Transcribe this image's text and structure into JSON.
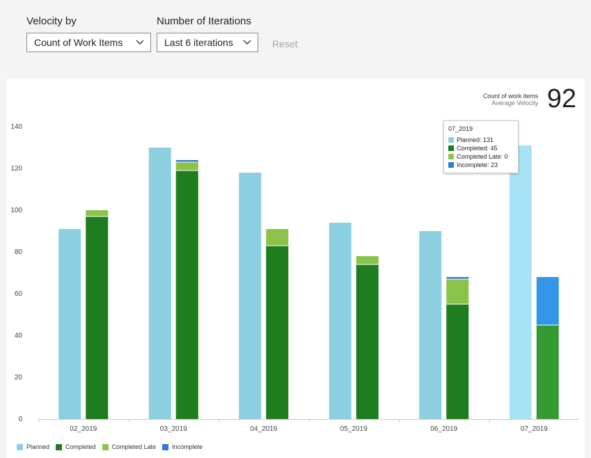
{
  "filters": {
    "velocity_by": {
      "label": "Velocity by",
      "value": "Count of Work Items"
    },
    "iterations": {
      "label": "Number of Iterations",
      "value": "Last 6 iterations"
    },
    "reset_label": "Reset"
  },
  "average": {
    "metric_label": "Count of work items",
    "sub_label": "Average Velocity",
    "value": "92"
  },
  "tooltip": {
    "title": "07_2019",
    "rows": [
      "Planned: 131",
      "Completed: 45",
      "Completed Late: 0",
      "Incomplete: 23"
    ]
  },
  "colors": {
    "planned": "#8ccfe0",
    "completed": "#1e7d1e",
    "completed_late": "#8bc34a",
    "incomplete": "#2e7cd6",
    "planned_highlight": "#a8e3f5",
    "completed_highlight": "#339933",
    "incomplete_highlight": "#3395e8"
  },
  "chart_data": {
    "type": "bar",
    "stacked_completed": true,
    "categories": [
      "02_2019",
      "03_2019",
      "04_2019",
      "05_2019",
      "06_2019",
      "07_2019"
    ],
    "series": [
      {
        "name": "Planned",
        "values": [
          91,
          130,
          118,
          94,
          90,
          131
        ]
      },
      {
        "name": "Completed",
        "values": [
          97,
          119,
          83,
          74,
          55,
          45
        ]
      },
      {
        "name": "Completed Late",
        "values": [
          3,
          4,
          8,
          4,
          12,
          0
        ]
      },
      {
        "name": "Incomplete",
        "values": [
          0,
          1,
          0,
          0,
          1,
          23
        ]
      }
    ],
    "ylim": [
      0,
      140
    ],
    "yticks": [
      0,
      20,
      40,
      60,
      80,
      100,
      120,
      140
    ],
    "highlighted_category": "07_2019",
    "legend_position": "bottom-left"
  }
}
